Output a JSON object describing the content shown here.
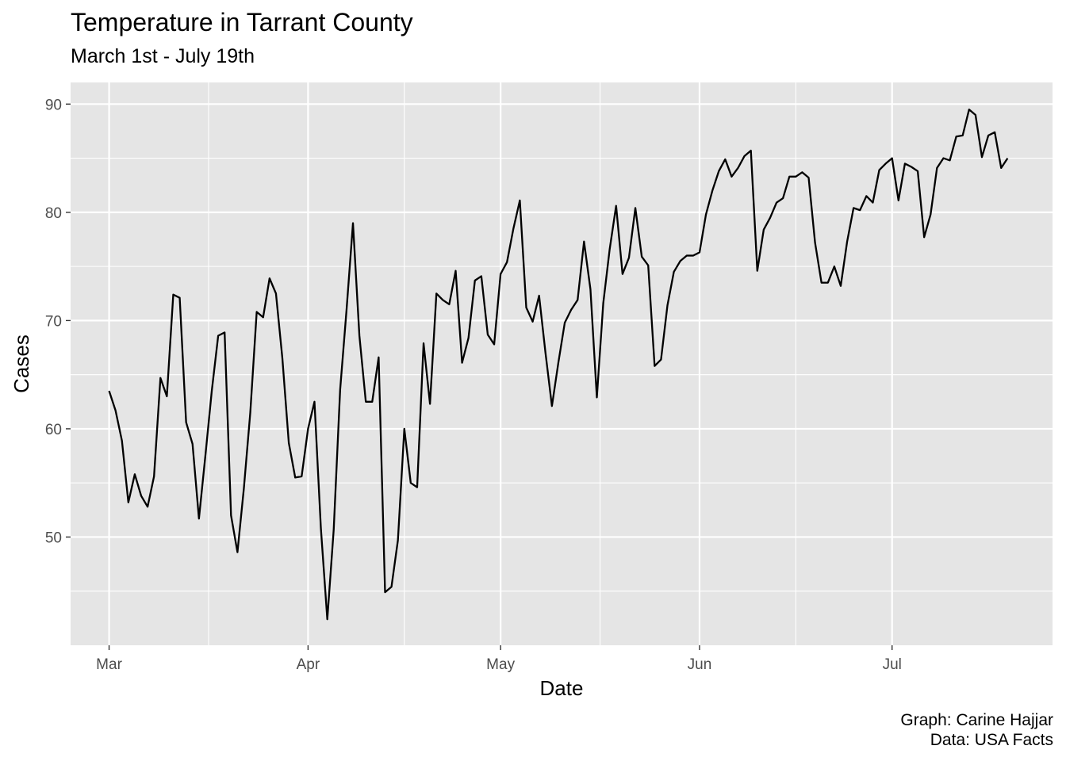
{
  "title": "Temperature in Tarrant County",
  "subtitle": "March 1st - July 19th",
  "caption": {
    "line1": "Graph: Carine Hajjar",
    "line2": "Data: USA Facts"
  },
  "colors": {
    "panel": "#e5e5e5",
    "grid": "#ffffff",
    "line": "#000000",
    "tick_text": "#4d4d4d"
  },
  "chart_data": {
    "type": "line",
    "title": "Temperature in Tarrant County",
    "subtitle": "March 1st - July 19th",
    "xlabel": "Date",
    "ylabel": "Cases",
    "x_start": "2020-03-01",
    "x_end": "2020-07-19",
    "xlim": [
      "2020-02-24",
      "2020-07-26"
    ],
    "ylim": [
      40,
      92
    ],
    "x_ticks": [
      {
        "label": "Mar",
        "date": "2020-03-01"
      },
      {
        "label": "Apr",
        "date": "2020-04-01"
      },
      {
        "label": "May",
        "date": "2020-05-01"
      },
      {
        "label": "Jun",
        "date": "2020-06-01"
      },
      {
        "label": "Jul",
        "date": "2020-07-01"
      }
    ],
    "y_ticks": [
      50,
      60,
      70,
      80,
      90
    ],
    "grid": true,
    "legend": "none",
    "series": [
      {
        "values": [
          63.5,
          61.7,
          58.9,
          53.2,
          55.8,
          53.8,
          52.8,
          55.6,
          64.7,
          63.0,
          72.4,
          72.1,
          60.6,
          58.6,
          51.7,
          57.5,
          63.5,
          68.6,
          68.9,
          52.0,
          48.6,
          54.5,
          61.5,
          70.8,
          70.3,
          73.9,
          72.5,
          66.5,
          58.7,
          55.5,
          55.6,
          60.0,
          62.5,
          50.8,
          42.4,
          50.7,
          63.6,
          71.0,
          79.0,
          68.6,
          62.5,
          62.5,
          66.6,
          44.9,
          45.4,
          49.7,
          60.0,
          55.0,
          54.6,
          67.9,
          62.3,
          72.5,
          71.9,
          71.5,
          74.6,
          66.1,
          68.4,
          73.7,
          74.1,
          68.7,
          67.8,
          74.3,
          75.4,
          78.5,
          81.1,
          71.2,
          69.9,
          72.3,
          67.0,
          62.1,
          66.1,
          69.8,
          71.0,
          71.9,
          77.3,
          72.9,
          62.9,
          71.6,
          76.6,
          80.6,
          74.3,
          75.8,
          80.4,
          75.9,
          75.1,
          65.8,
          66.4,
          71.4,
          74.5,
          75.5,
          76.0,
          76.0,
          76.3,
          79.8,
          82.0,
          83.8,
          84.9,
          83.3,
          84.1,
          85.2,
          85.7,
          74.6,
          78.4,
          79.5,
          80.9,
          81.3,
          83.3,
          83.3,
          83.7,
          83.2,
          77.2,
          73.5,
          73.5,
          75.0,
          73.2,
          77.3,
          80.4,
          80.2,
          81.5,
          80.9,
          83.9,
          84.5,
          85.0,
          81.1,
          84.5,
          84.2,
          83.8,
          77.7,
          79.8,
          84.1,
          85.0,
          84.8,
          87.0,
          87.1,
          89.5,
          89.0,
          85.1,
          87.1,
          87.4,
          84.1,
          85.0
        ]
      }
    ]
  }
}
